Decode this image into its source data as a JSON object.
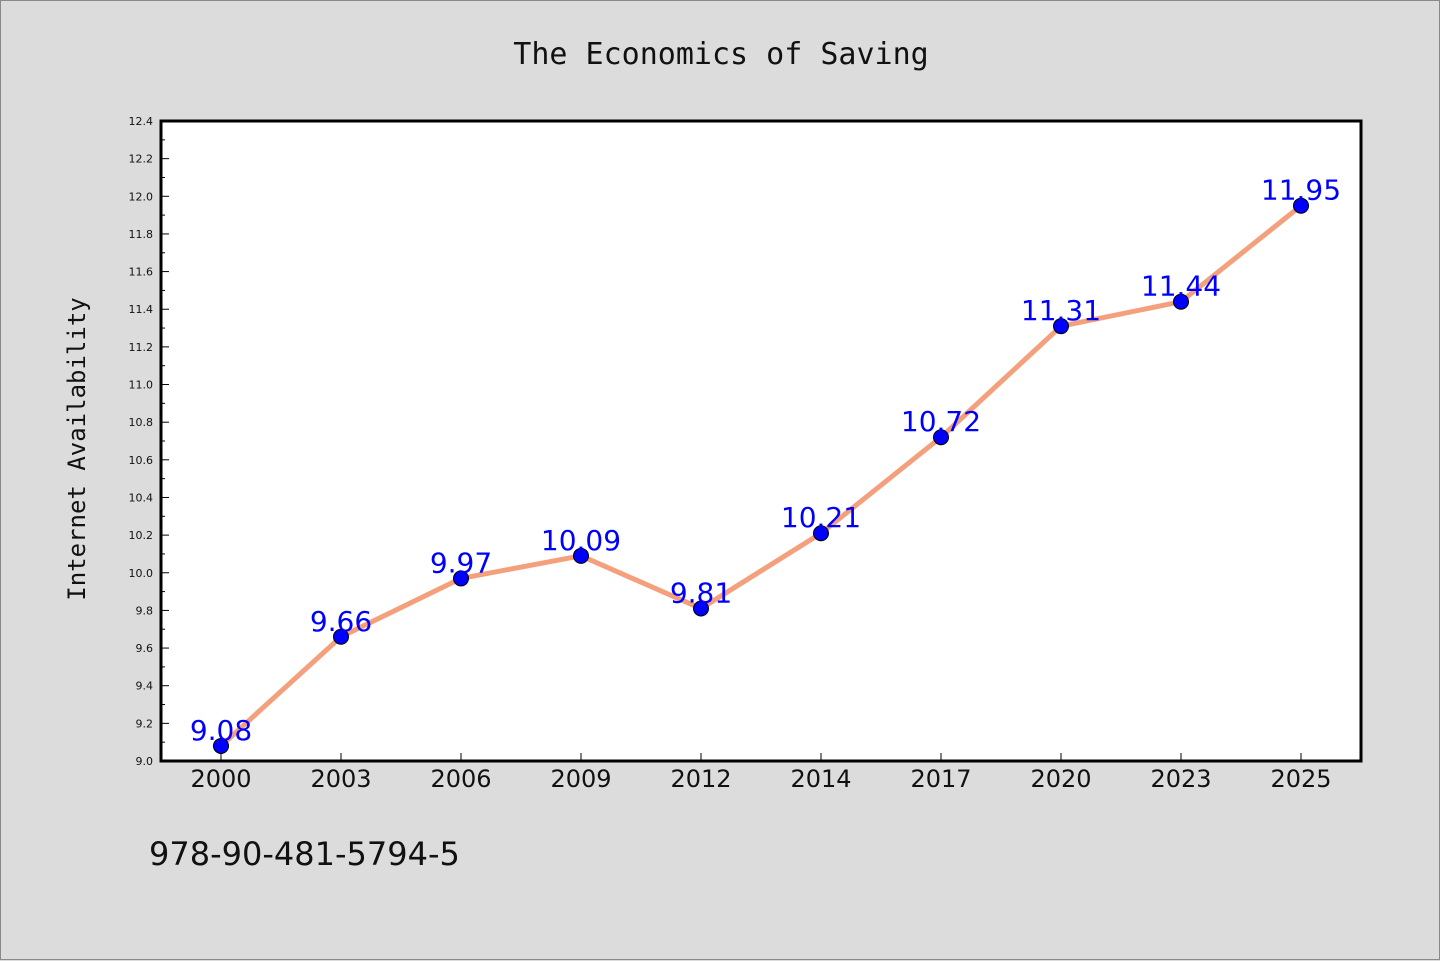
{
  "chart_data": {
    "type": "line",
    "title": "The Economics of Saving",
    "xlabel": "",
    "ylabel": "Internet Availability",
    "categories": [
      "2000",
      "2003",
      "2006",
      "2009",
      "2012",
      "2014",
      "2017",
      "2020",
      "2023",
      "2025"
    ],
    "series": [
      {
        "values": [
          9.08,
          9.66,
          9.97,
          10.09,
          9.81,
          10.21,
          10.72,
          11.31,
          11.44,
          11.95
        ],
        "labels": [
          "9.08",
          "9.66",
          "9.97",
          "10.09",
          "9.81",
          "10.21",
          "10.72",
          "11.31",
          "11.44",
          "11.95"
        ],
        "line_color": "#f4a07c",
        "marker_color": "#0000ff"
      }
    ],
    "ylim": [
      9.0,
      12.4
    ],
    "yticks": [
      "9.0",
      "9.2",
      "9.4",
      "9.6",
      "9.8",
      "10.0",
      "10.2",
      "10.4",
      "10.6",
      "10.8",
      "11.0",
      "11.2",
      "11.4",
      "11.6",
      "11.8",
      "12.0",
      "12.2",
      "12.4"
    ],
    "grid": false,
    "legend": "none"
  },
  "footer": {
    "isbn": "978-90-481-5794-5"
  },
  "colors": {
    "background": "#dcdcdc",
    "plot_background": "#ffffff",
    "label_color": "#0000ff"
  }
}
